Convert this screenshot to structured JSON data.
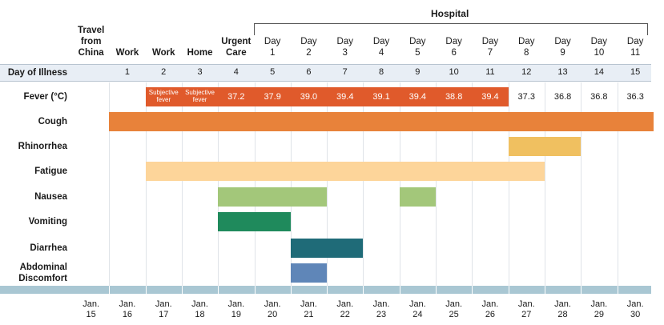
{
  "hospital_label": "Hospital",
  "row_header": "Day of Illness",
  "columns": [
    {
      "top": "Travel from China",
      "day_num": "",
      "date": "Jan. 15",
      "fever": "",
      "fever_style": "none"
    },
    {
      "top": "Work",
      "day_num": "1",
      "date": "Jan. 16",
      "fever": "",
      "fever_style": "none"
    },
    {
      "top": "Work",
      "day_num": "2",
      "date": "Jan. 17",
      "fever": "Subjective fever",
      "fever_style": "hi-small"
    },
    {
      "top": "Home",
      "day_num": "3",
      "date": "Jan. 18",
      "fever": "Subjective fever",
      "fever_style": "hi-small"
    },
    {
      "top": "Urgent Care",
      "day_num": "4",
      "date": "Jan. 19",
      "fever": "37.2",
      "fever_style": "hi"
    },
    {
      "top": "Day 1",
      "day_num": "5",
      "date": "Jan. 20",
      "fever": "37.9",
      "fever_style": "hi"
    },
    {
      "top": "Day 2",
      "day_num": "6",
      "date": "Jan. 21",
      "fever": "39.0",
      "fever_style": "hi"
    },
    {
      "top": "Day 3",
      "day_num": "7",
      "date": "Jan. 22",
      "fever": "39.4",
      "fever_style": "hi"
    },
    {
      "top": "Day 4",
      "day_num": "8",
      "date": "Jan. 23",
      "fever": "39.1",
      "fever_style": "hi"
    },
    {
      "top": "Day 5",
      "day_num": "9",
      "date": "Jan. 24",
      "fever": "39.4",
      "fever_style": "hi"
    },
    {
      "top": "Day 6",
      "day_num": "10",
      "date": "Jan. 25",
      "fever": "38.8",
      "fever_style": "hi"
    },
    {
      "top": "Day 7",
      "day_num": "11",
      "date": "Jan. 26",
      "fever": "39.4",
      "fever_style": "hi"
    },
    {
      "top": "Day 8",
      "day_num": "12",
      "date": "Jan. 27",
      "fever": "37.3",
      "fever_style": "plain"
    },
    {
      "top": "Day 9",
      "day_num": "13",
      "date": "Jan. 28",
      "fever": "36.8",
      "fever_style": "plain"
    },
    {
      "top": "Day 10",
      "day_num": "14",
      "date": "Jan. 29",
      "fever": "36.8",
      "fever_style": "plain"
    },
    {
      "top": "Day 11",
      "day_num": "15",
      "date": "Jan. 30",
      "fever": "36.3",
      "fever_style": "plain"
    }
  ],
  "fever_row": {
    "label": "Fever (°C)",
    "color": "#e05a2b",
    "start_col": 2,
    "end_col": 11
  },
  "symptoms": [
    {
      "label": "Cough",
      "color": "#e8823a",
      "start_col": 1,
      "end_col": 15
    },
    {
      "label": "Rhinorrhea",
      "color": "#f0c060",
      "start_col": 12,
      "end_col": 13
    },
    {
      "label": "Fatigue",
      "color": "#fdd59a",
      "start_col": 2,
      "end_col": 12
    },
    {
      "label": "Nausea",
      "color": "#a3c77a",
      "start_col": 4,
      "end_col": 6
    },
    {
      "label": "Nausea",
      "color": "#a3c77a",
      "start_col": 9,
      "end_col": 9
    },
    {
      "label": "Vomiting",
      "color": "#1f8a5c",
      "start_col": 4,
      "end_col": 5
    },
    {
      "label": "Diarrhea",
      "color": "#1f6b78",
      "start_col": 6,
      "end_col": 7
    },
    {
      "label": "Abdominal Discomfort",
      "color": "#5f86b8",
      "start_col": 6,
      "end_col": 6
    }
  ],
  "row_labels": [
    "Fever (°C)",
    "Cough",
    "Rhinorrhea",
    "Fatigue",
    "Nausea",
    "Vomiting",
    "Diarrhea",
    "Abdominal Discomfort"
  ],
  "colors": {
    "band": "#e8eef5",
    "axis": "#a9c7d3",
    "grid": "#dfe3e8"
  }
}
